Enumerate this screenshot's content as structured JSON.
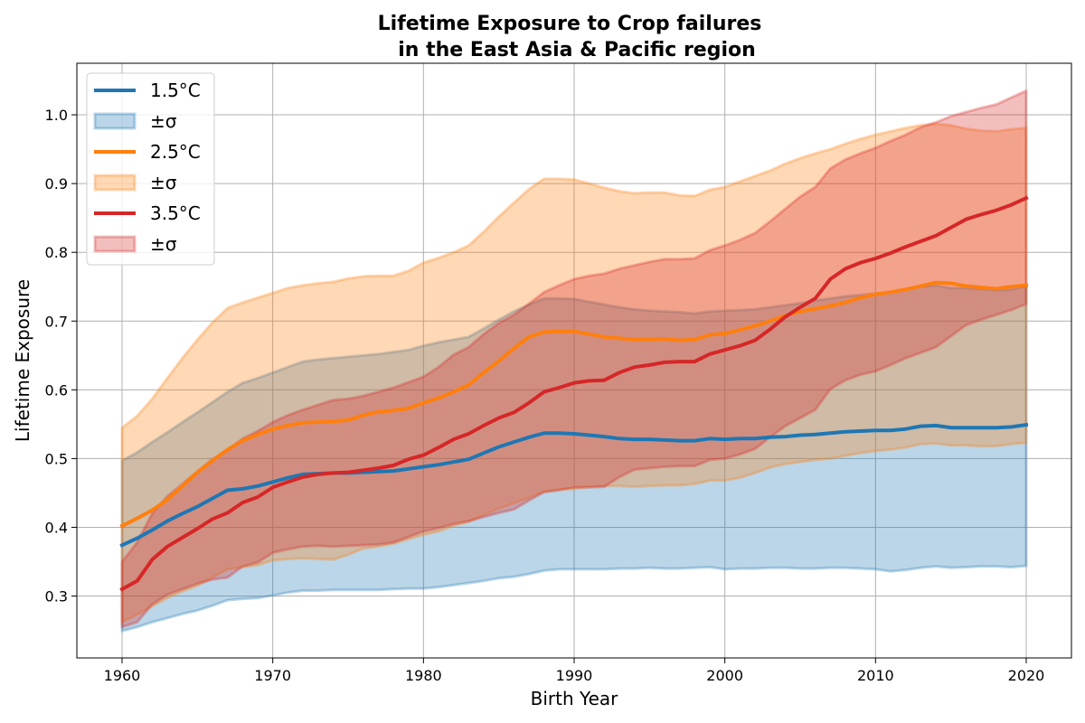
{
  "chart_data": {
    "type": "area",
    "title_line1": "Lifetime Exposure to Crop failures",
    "title_line2": "in the East Asia & Pacific region",
    "xlabel": "Birth Year",
    "ylabel": "Lifetime Exposure",
    "xlim": [
      1957,
      2023
    ],
    "ylim": [
      0.21,
      1.075
    ],
    "xticks": [
      1960,
      1970,
      1980,
      1990,
      2000,
      2010,
      2020
    ],
    "yticks": [
      0.3,
      0.4,
      0.5,
      0.6,
      0.7,
      0.8,
      0.9,
      1.0
    ],
    "ytick_labels": [
      "0.3",
      "0.4",
      "0.5",
      "0.6",
      "0.7",
      "0.8",
      "0.9",
      "1.0"
    ],
    "grid": true,
    "legend_position": "top-left",
    "x": [
      1960,
      1961,
      1962,
      1963,
      1964,
      1965,
      1966,
      1967,
      1968,
      1969,
      1970,
      1971,
      1972,
      1973,
      1974,
      1975,
      1976,
      1977,
      1978,
      1979,
      1980,
      1981,
      1982,
      1983,
      1984,
      1985,
      1986,
      1987,
      1988,
      1989,
      1990,
      1991,
      1992,
      1993,
      1994,
      1995,
      1996,
      1997,
      1998,
      1999,
      2000,
      2001,
      2002,
      2003,
      2004,
      2005,
      2006,
      2007,
      2008,
      2009,
      2010,
      2011,
      2012,
      2013,
      2014,
      2015,
      2016,
      2017,
      2018,
      2019,
      2020
    ],
    "series": [
      {
        "name": "1.5°C",
        "band_label": "±σ",
        "color": "#1f77b4",
        "mean": [
          0.374,
          0.384,
          0.396,
          0.409,
          0.42,
          0.43,
          0.442,
          0.454,
          0.456,
          0.46,
          0.466,
          0.472,
          0.477,
          0.478,
          0.479,
          0.479,
          0.48,
          0.481,
          0.482,
          0.485,
          0.488,
          0.491,
          0.495,
          0.499,
          0.508,
          0.517,
          0.524,
          0.531,
          0.537,
          0.537,
          0.536,
          0.534,
          0.532,
          0.529,
          0.528,
          0.528,
          0.527,
          0.526,
          0.526,
          0.529,
          0.528,
          0.529,
          0.529,
          0.531,
          0.532,
          0.534,
          0.535,
          0.537,
          0.539,
          0.54,
          0.541,
          0.541,
          0.543,
          0.547,
          0.548,
          0.545,
          0.545,
          0.545,
          0.545,
          0.546,
          0.549
        ],
        "lower": [
          0.249,
          0.255,
          0.262,
          0.268,
          0.274,
          0.279,
          0.286,
          0.294,
          0.296,
          0.297,
          0.301,
          0.305,
          0.308,
          0.308,
          0.309,
          0.309,
          0.309,
          0.309,
          0.31,
          0.311,
          0.311,
          0.313,
          0.316,
          0.319,
          0.322,
          0.326,
          0.328,
          0.332,
          0.337,
          0.339,
          0.339,
          0.339,
          0.339,
          0.34,
          0.34,
          0.341,
          0.34,
          0.34,
          0.341,
          0.342,
          0.339,
          0.34,
          0.34,
          0.341,
          0.341,
          0.34,
          0.34,
          0.341,
          0.341,
          0.34,
          0.339,
          0.336,
          0.338,
          0.341,
          0.343,
          0.341,
          0.342,
          0.343,
          0.343,
          0.342,
          0.344
        ],
        "upper": [
          0.497,
          0.509,
          0.524,
          0.538,
          0.553,
          0.567,
          0.582,
          0.597,
          0.61,
          0.617,
          0.625,
          0.633,
          0.641,
          0.644,
          0.646,
          0.648,
          0.65,
          0.652,
          0.655,
          0.658,
          0.664,
          0.669,
          0.673,
          0.677,
          0.689,
          0.702,
          0.714,
          0.724,
          0.733,
          0.733,
          0.732,
          0.728,
          0.724,
          0.72,
          0.717,
          0.715,
          0.714,
          0.713,
          0.711,
          0.714,
          0.715,
          0.716,
          0.717,
          0.72,
          0.723,
          0.726,
          0.73,
          0.733,
          0.736,
          0.738,
          0.74,
          0.742,
          0.746,
          0.75,
          0.752,
          0.748,
          0.748,
          0.747,
          0.745,
          0.746,
          0.751
        ]
      },
      {
        "name": "2.5°C",
        "band_label": "±σ",
        "color": "#ff7f0e",
        "mean": [
          0.402,
          0.413,
          0.425,
          0.44,
          0.46,
          0.48,
          0.497,
          0.513,
          0.526,
          0.535,
          0.543,
          0.548,
          0.552,
          0.553,
          0.554,
          0.556,
          0.563,
          0.568,
          0.57,
          0.573,
          0.581,
          0.588,
          0.597,
          0.607,
          0.625,
          0.642,
          0.66,
          0.677,
          0.684,
          0.685,
          0.685,
          0.681,
          0.677,
          0.675,
          0.673,
          0.673,
          0.674,
          0.672,
          0.673,
          0.68,
          0.682,
          0.687,
          0.693,
          0.7,
          0.708,
          0.714,
          0.718,
          0.722,
          0.727,
          0.734,
          0.739,
          0.742,
          0.746,
          0.751,
          0.756,
          0.755,
          0.751,
          0.749,
          0.747,
          0.75,
          0.752
        ],
        "lower": [
          0.262,
          0.273,
          0.285,
          0.297,
          0.307,
          0.315,
          0.327,
          0.339,
          0.342,
          0.345,
          0.352,
          0.354,
          0.355,
          0.354,
          0.353,
          0.36,
          0.369,
          0.372,
          0.376,
          0.383,
          0.389,
          0.394,
          0.402,
          0.408,
          0.418,
          0.427,
          0.435,
          0.443,
          0.452,
          0.455,
          0.456,
          0.459,
          0.46,
          0.46,
          0.459,
          0.46,
          0.461,
          0.461,
          0.463,
          0.468,
          0.468,
          0.472,
          0.479,
          0.487,
          0.492,
          0.495,
          0.498,
          0.5,
          0.504,
          0.508,
          0.511,
          0.513,
          0.516,
          0.521,
          0.522,
          0.519,
          0.519,
          0.518,
          0.518,
          0.521,
          0.523
        ],
        "upper": [
          0.545,
          0.562,
          0.587,
          0.617,
          0.646,
          0.673,
          0.698,
          0.719,
          0.727,
          0.734,
          0.741,
          0.748,
          0.752,
          0.755,
          0.757,
          0.762,
          0.765,
          0.766,
          0.766,
          0.773,
          0.785,
          0.792,
          0.8,
          0.81,
          0.83,
          0.852,
          0.872,
          0.892,
          0.907,
          0.907,
          0.906,
          0.9,
          0.894,
          0.889,
          0.886,
          0.887,
          0.887,
          0.883,
          0.882,
          0.891,
          0.895,
          0.903,
          0.911,
          0.919,
          0.929,
          0.937,
          0.944,
          0.95,
          0.958,
          0.965,
          0.971,
          0.976,
          0.981,
          0.985,
          0.987,
          0.985,
          0.98,
          0.977,
          0.976,
          0.979,
          0.981
        ]
      },
      {
        "name": "3.5°C",
        "band_label": "±σ",
        "color": "#d62728",
        "mean": [
          0.31,
          0.322,
          0.353,
          0.372,
          0.385,
          0.398,
          0.412,
          0.421,
          0.436,
          0.444,
          0.458,
          0.466,
          0.473,
          0.477,
          0.479,
          0.48,
          0.483,
          0.486,
          0.49,
          0.499,
          0.505,
          0.516,
          0.528,
          0.536,
          0.548,
          0.559,
          0.567,
          0.581,
          0.597,
          0.603,
          0.61,
          0.613,
          0.614,
          0.625,
          0.633,
          0.636,
          0.64,
          0.641,
          0.641,
          0.652,
          0.658,
          0.664,
          0.672,
          0.688,
          0.706,
          0.72,
          0.733,
          0.761,
          0.776,
          0.785,
          0.791,
          0.799,
          0.808,
          0.816,
          0.824,
          0.836,
          0.848,
          0.855,
          0.861,
          0.869,
          0.879
        ],
        "lower": [
          0.255,
          0.262,
          0.288,
          0.302,
          0.31,
          0.318,
          0.324,
          0.327,
          0.343,
          0.349,
          0.363,
          0.368,
          0.372,
          0.373,
          0.372,
          0.373,
          0.374,
          0.375,
          0.378,
          0.386,
          0.394,
          0.399,
          0.405,
          0.409,
          0.415,
          0.421,
          0.426,
          0.439,
          0.451,
          0.454,
          0.458,
          0.458,
          0.459,
          0.473,
          0.484,
          0.486,
          0.488,
          0.489,
          0.489,
          0.498,
          0.5,
          0.506,
          0.514,
          0.531,
          0.547,
          0.559,
          0.571,
          0.601,
          0.614,
          0.622,
          0.627,
          0.636,
          0.646,
          0.654,
          0.662,
          0.678,
          0.694,
          0.702,
          0.709,
          0.716,
          0.725
        ],
        "upper": [
          0.35,
          0.378,
          0.42,
          0.445,
          0.463,
          0.481,
          0.499,
          0.512,
          0.529,
          0.54,
          0.553,
          0.563,
          0.571,
          0.578,
          0.585,
          0.587,
          0.591,
          0.597,
          0.603,
          0.611,
          0.619,
          0.633,
          0.651,
          0.662,
          0.681,
          0.697,
          0.709,
          0.725,
          0.742,
          0.752,
          0.761,
          0.766,
          0.769,
          0.776,
          0.781,
          0.786,
          0.79,
          0.79,
          0.791,
          0.803,
          0.81,
          0.818,
          0.828,
          0.845,
          0.863,
          0.881,
          0.895,
          0.922,
          0.935,
          0.944,
          0.952,
          0.962,
          0.971,
          0.982,
          0.989,
          0.998,
          1.004,
          1.01,
          1.015,
          1.025,
          1.035
        ]
      }
    ]
  }
}
